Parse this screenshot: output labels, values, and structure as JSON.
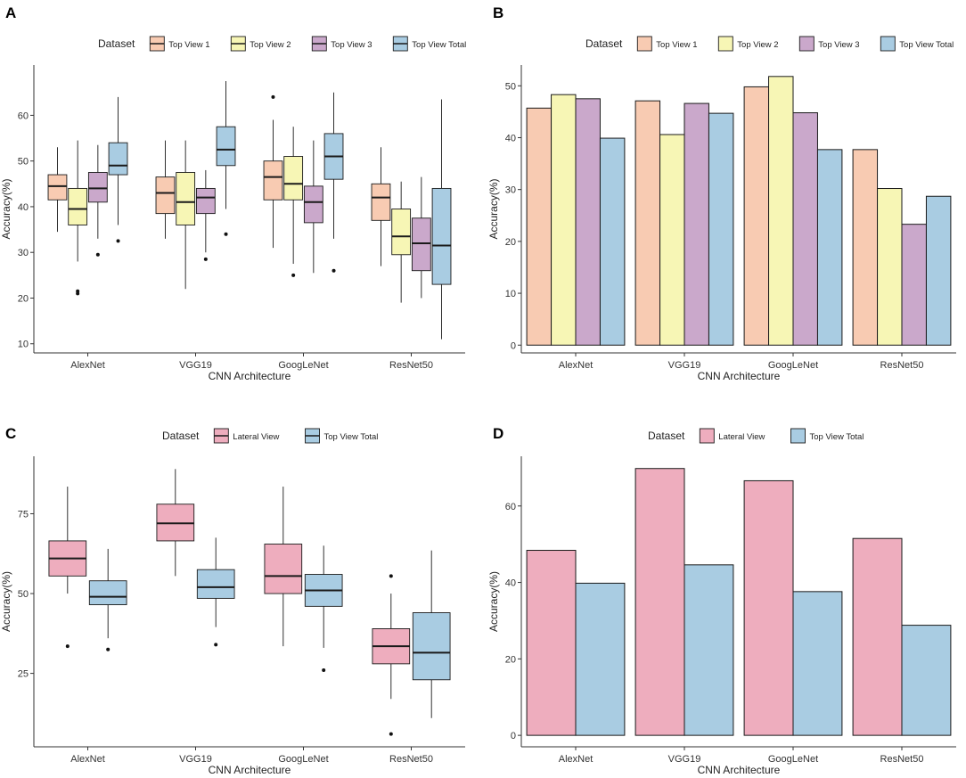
{
  "colors": {
    "top_view_1": "#f8cbb2",
    "top_view_2": "#f7f6b5",
    "top_view_3": "#caa8cb",
    "top_view_total": "#a9cce2",
    "lateral_view": "#eeadbe",
    "outline": "#1a1a1a",
    "axis": "#333333"
  },
  "chart_data": [
    {
      "panel": "A",
      "type": "box",
      "xlabel": "CNN Architecture",
      "ylabel": "Accuracy(%)",
      "legend_title": "Dataset",
      "legend_position": "top",
      "ylim": [
        8,
        71
      ],
      "yticks": [
        10,
        20,
        30,
        40,
        50,
        60
      ],
      "categories": [
        "AlexNet",
        "VGG19",
        "GoogLeNet",
        "ResNet50"
      ],
      "series": [
        {
          "name": "Top View 1",
          "color_key": "top_view_1",
          "boxes": [
            {
              "min": 34.5,
              "q1": 41.5,
              "median": 44.5,
              "q3": 47,
              "max": 53,
              "outliers": []
            },
            {
              "min": 33,
              "q1": 38.5,
              "median": 43,
              "q3": 46.5,
              "max": 54.5,
              "outliers": []
            },
            {
              "min": 31,
              "q1": 41.5,
              "median": 46.5,
              "q3": 50,
              "max": 59,
              "outliers": [
                64
              ]
            },
            {
              "min": 27,
              "q1": 37,
              "median": 42,
              "q3": 45,
              "max": 53,
              "outliers": []
            }
          ]
        },
        {
          "name": "Top View 2",
          "color_key": "top_view_2",
          "boxes": [
            {
              "min": 28,
              "q1": 36,
              "median": 39.5,
              "q3": 44,
              "max": 54.5,
              "outliers": [
                21,
                21.5
              ]
            },
            {
              "min": 22,
              "q1": 36,
              "median": 41,
              "q3": 47.5,
              "max": 54.5,
              "outliers": []
            },
            {
              "min": 27.5,
              "q1": 41.5,
              "median": 45,
              "q3": 51,
              "max": 57.5,
              "outliers": [
                25
              ]
            },
            {
              "min": 19,
              "q1": 29.5,
              "median": 33.5,
              "q3": 39.5,
              "max": 45.5,
              "outliers": []
            }
          ]
        },
        {
          "name": "Top View 3",
          "color_key": "top_view_3",
          "boxes": [
            {
              "min": 33,
              "q1": 41,
              "median": 44,
              "q3": 47.5,
              "max": 53.5,
              "outliers": [
                29.5
              ]
            },
            {
              "min": 30,
              "q1": 38.5,
              "median": 42,
              "q3": 44,
              "max": 48,
              "outliers": [
                28.5
              ]
            },
            {
              "min": 25.5,
              "q1": 36.5,
              "median": 41,
              "q3": 44.5,
              "max": 54.5,
              "outliers": []
            },
            {
              "min": 20,
              "q1": 26,
              "median": 32,
              "q3": 37.5,
              "max": 46.5,
              "outliers": []
            }
          ]
        },
        {
          "name": "Top View Total",
          "color_key": "top_view_total",
          "boxes": [
            {
              "min": 36,
              "q1": 47,
              "median": 49,
              "q3": 54,
              "max": 64,
              "outliers": [
                32.5
              ]
            },
            {
              "min": 39.5,
              "q1": 49,
              "median": 52.5,
              "q3": 57.5,
              "max": 67.5,
              "outliers": [
                34
              ]
            },
            {
              "min": 33,
              "q1": 46,
              "median": 51,
              "q3": 56,
              "max": 65,
              "outliers": [
                26
              ]
            },
            {
              "min": 11,
              "q1": 23,
              "median": 31.5,
              "q3": 44,
              "max": 63.5,
              "outliers": []
            }
          ]
        }
      ]
    },
    {
      "panel": "B",
      "type": "bar",
      "xlabel": "CNN Architecture",
      "ylabel": "Accuracy(%)",
      "legend_title": "Dataset",
      "legend_position": "top",
      "ylim": [
        -1.5,
        54
      ],
      "yticks": [
        0,
        10,
        20,
        30,
        40,
        50
      ],
      "categories": [
        "AlexNet",
        "VGG19",
        "GoogLeNet",
        "ResNet50"
      ],
      "series": [
        {
          "name": "Top View 1",
          "color_key": "top_view_1",
          "values": [
            45.7,
            47.1,
            49.8,
            37.7
          ]
        },
        {
          "name": "Top View 2",
          "color_key": "top_view_2",
          "values": [
            48.3,
            40.6,
            51.8,
            30.2
          ]
        },
        {
          "name": "Top View 3",
          "color_key": "top_view_3",
          "values": [
            47.5,
            46.6,
            44.8,
            23.3
          ]
        },
        {
          "name": "Top View Total",
          "color_key": "top_view_total",
          "values": [
            39.9,
            44.7,
            37.7,
            28.7
          ]
        }
      ]
    },
    {
      "panel": "C",
      "type": "box",
      "xlabel": "CNN Architecture",
      "ylabel": "Accuracy(%)",
      "legend_title": "Dataset",
      "legend_position": "top",
      "ylim": [
        2,
        93
      ],
      "yticks": [
        25,
        50,
        75
      ],
      "categories": [
        "AlexNet",
        "VGG19",
        "GoogLeNet",
        "ResNet50"
      ],
      "series": [
        {
          "name": "Lateral View",
          "color_key": "lateral_view",
          "boxes": [
            {
              "min": 50,
              "q1": 55.5,
              "median": 61,
              "q3": 66.5,
              "max": 83.5,
              "outliers": [
                33.5
              ]
            },
            {
              "min": 55.5,
              "q1": 66.5,
              "median": 72,
              "q3": 78,
              "max": 89,
              "outliers": []
            },
            {
              "min": 33.5,
              "q1": 50,
              "median": 55.5,
              "q3": 65.5,
              "max": 83.5,
              "outliers": []
            },
            {
              "min": 17,
              "q1": 28,
              "median": 33.5,
              "q3": 39,
              "max": 50,
              "outliers": [
                55.5,
                6
              ]
            }
          ]
        },
        {
          "name": "Top View Total",
          "color_key": "top_view_total",
          "boxes": [
            {
              "min": 36,
              "q1": 46.5,
              "median": 49,
              "q3": 54,
              "max": 64,
              "outliers": [
                32.5
              ]
            },
            {
              "min": 39.5,
              "q1": 48.5,
              "median": 52,
              "q3": 57.5,
              "max": 67.5,
              "outliers": [
                34
              ]
            },
            {
              "min": 33,
              "q1": 46,
              "median": 51,
              "q3": 56,
              "max": 65,
              "outliers": [
                26
              ]
            },
            {
              "min": 11,
              "q1": 23,
              "median": 31.5,
              "q3": 44,
              "max": 63.5,
              "outliers": []
            }
          ]
        }
      ]
    },
    {
      "panel": "D",
      "type": "bar",
      "xlabel": "CNN Architecture",
      "ylabel": "Accuracy(%)",
      "legend_title": "Dataset",
      "legend_position": "top",
      "ylim": [
        -3,
        73
      ],
      "yticks": [
        0,
        20,
        40,
        60
      ],
      "categories": [
        "AlexNet",
        "VGG19",
        "GoogLeNet",
        "ResNet50"
      ],
      "series": [
        {
          "name": "Lateral View",
          "color_key": "lateral_view",
          "values": [
            48.4,
            69.8,
            66.6,
            51.5
          ]
        },
        {
          "name": "Top View Total",
          "color_key": "top_view_total",
          "values": [
            39.8,
            44.6,
            37.6,
            28.8
          ]
        }
      ]
    }
  ]
}
